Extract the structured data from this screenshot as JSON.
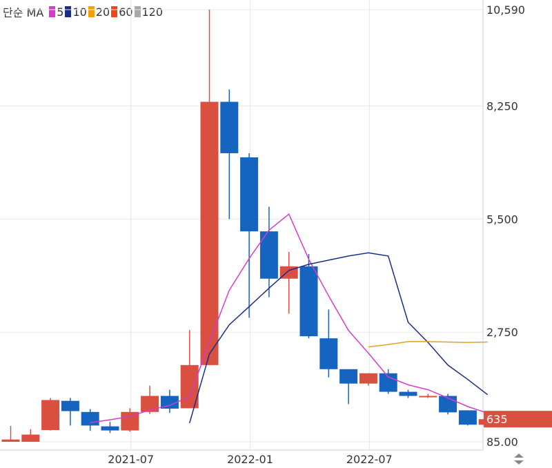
{
  "legend": {
    "title": "단순 MA",
    "items": [
      {
        "label": "5",
        "color": "#d63cc9"
      },
      {
        "label": "10",
        "color": "#1a2b8a"
      },
      {
        "label": "20",
        "color": "#f2a007"
      },
      {
        "label": "60",
        "color": "#f0441d"
      },
      {
        "label": "120",
        "color": "#a8a8a8"
      }
    ]
  },
  "colors": {
    "up": "#d95040",
    "down": "#1565c0",
    "grid": "#e8e8e8",
    "ma5": "#d63cc9",
    "ma10": "#1a2b8a",
    "ma20": "#e0a020"
  },
  "current_price_label": "635",
  "scroll_icon": "up-down-arrows-icon",
  "chart_data": {
    "type": "candlestick",
    "title": "",
    "y_ticks": [
      "10,590",
      "8,250",
      "5,500",
      "2,750",
      "85.00"
    ],
    "y_tick_values": [
      10590,
      8250,
      5500,
      2750,
      85
    ],
    "x_ticks": [
      {
        "label": "2021-07",
        "index": 6.5
      },
      {
        "label": "2022-01",
        "index": 12.5
      },
      {
        "label": "2022-07",
        "index": 18.5
      }
    ],
    "ylim": [
      85,
      10590
    ],
    "current_price": 635,
    "candles": [
      {
        "open": 85,
        "close": 140,
        "high": 470,
        "low": 85
      },
      {
        "open": 85,
        "close": 260,
        "high": 390,
        "low": 85
      },
      {
        "open": 370,
        "close": 1100,
        "high": 1150,
        "low": 360
      },
      {
        "open": 1080,
        "close": 830,
        "high": 1150,
        "low": 480
      },
      {
        "open": 810,
        "close": 480,
        "high": 880,
        "low": 350
      },
      {
        "open": 460,
        "close": 360,
        "high": 570,
        "low": 300
      },
      {
        "open": 360,
        "close": 810,
        "high": 900,
        "low": 330
      },
      {
        "open": 810,
        "close": 1200,
        "high": 1450,
        "low": 760
      },
      {
        "open": 1200,
        "close": 890,
        "high": 1350,
        "low": 790
      },
      {
        "open": 900,
        "close": 1950,
        "high": 2800,
        "low": 900
      },
      {
        "open": 1950,
        "close": 8350,
        "high": 10590,
        "low": 1950
      },
      {
        "open": 8350,
        "close": 7100,
        "high": 8650,
        "low": 5500
      },
      {
        "open": 7000,
        "close": 5200,
        "high": 7100,
        "low": 3100
      },
      {
        "open": 5200,
        "close": 4050,
        "high": 5800,
        "low": 3600
      },
      {
        "open": 4050,
        "close": 4350,
        "high": 4700,
        "low": 3200
      },
      {
        "open": 4350,
        "close": 2650,
        "high": 4650,
        "low": 2600
      },
      {
        "open": 2600,
        "close": 1850,
        "high": 3300,
        "low": 1650
      },
      {
        "open": 1850,
        "close": 1500,
        "high": 1850,
        "low": 1000
      },
      {
        "open": 1500,
        "close": 1750,
        "high": 1750,
        "low": 1450
      },
      {
        "open": 1750,
        "close": 1300,
        "high": 1850,
        "low": 1250
      },
      {
        "open": 1300,
        "close": 1200,
        "high": 1350,
        "low": 1150
      },
      {
        "open": 1200,
        "close": 1200,
        "high": 1250,
        "low": 1150
      },
      {
        "open": 1200,
        "close": 800,
        "high": 1250,
        "low": 750
      },
      {
        "open": 850,
        "close": 500,
        "high": 850,
        "low": 480
      },
      {
        "open": 500,
        "close": 635,
        "high": 720,
        "low": 500
      }
    ],
    "ma5": [
      null,
      null,
      null,
      null,
      550,
      620,
      700,
      860,
      970,
      1180,
      2510,
      3770,
      4540,
      5230,
      5620,
      4520,
      3630,
      2790,
      2240,
      1660,
      1470,
      1350,
      1150,
      940,
      780
    ],
    "ma10": [
      null,
      null,
      null,
      null,
      null,
      null,
      null,
      null,
      null,
      540,
      2220,
      2930,
      3370,
      3820,
      4250,
      4400,
      4500,
      4600,
      4680,
      4600,
      2990,
      2500,
      1950,
      1600,
      1230
    ],
    "ma20": [
      null,
      null,
      null,
      null,
      null,
      null,
      null,
      null,
      null,
      null,
      null,
      null,
      null,
      null,
      null,
      null,
      null,
      null,
      2390,
      2450,
      2520,
      2520,
      2510,
      2500,
      2510
    ]
  }
}
